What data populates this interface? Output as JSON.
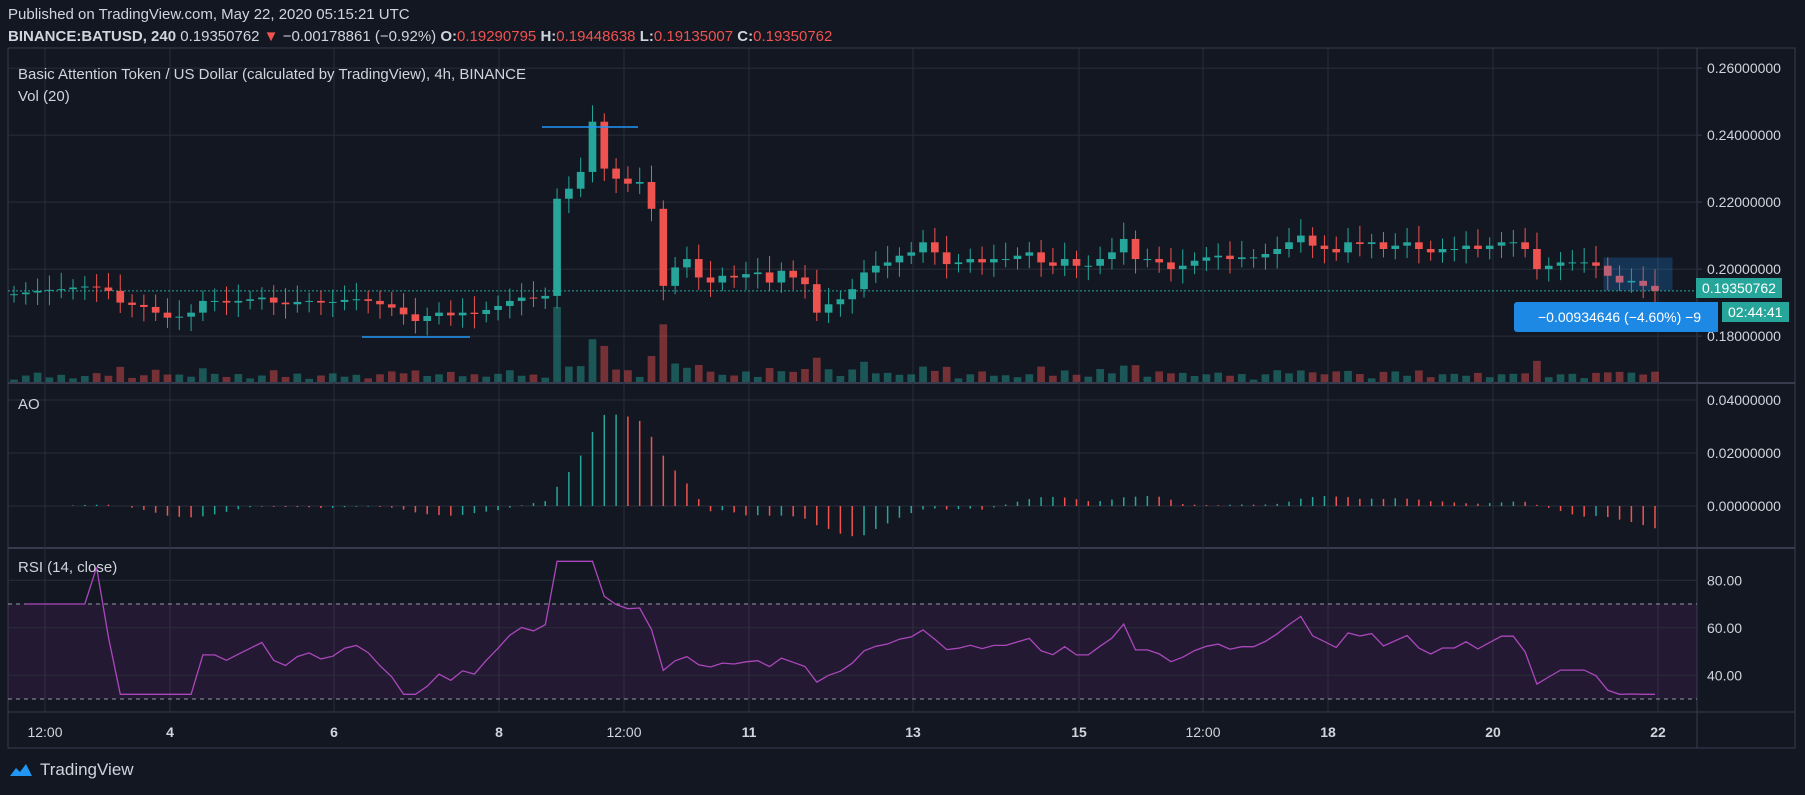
{
  "header": {
    "published": "Published on TradingView.com, May 22, 2020 05:15:21 UTC",
    "symbol": "BINANCE:BATUSD, 240",
    "last": "0.19350762",
    "change_arrow": "▼",
    "change": "−0.00178861 (−0.92%)",
    "o_label": "O:",
    "o": "0.19290795",
    "h_label": "H:",
    "h": "0.19448638",
    "l_label": "L:",
    "l": "0.19135007",
    "c_label": "C:",
    "c": "0.19350762"
  },
  "panes": {
    "main_title": "Basic Attention Token / US Dollar (calculated by TradingView), 4h, BINANCE",
    "vol_label": "Vol (20)",
    "ao_label": "AO",
    "rsi_label": "RSI (14, close)"
  },
  "tags": {
    "price": "0.19350762",
    "countdown": "02:44:41",
    "measure": "−0.00934646 (−4.60%) −9"
  },
  "footer": {
    "brand": "TradingView"
  },
  "colors": {
    "up": "#26a69a",
    "down": "#ef5350",
    "bg": "#131722",
    "rsi": "#9c27b0",
    "measure": "#1e88e5"
  },
  "chart_data": {
    "type": "candlestick",
    "title": "Basic Attention Token / US Dollar (calculated by TradingView), 4h, BINANCE",
    "x_ticks": [
      "12:00",
      "4",
      "6",
      "8",
      "12:00",
      "11",
      "13",
      "15",
      "12:00",
      "18",
      "20",
      "22"
    ],
    "price_axis": {
      "ticks": [
        "0.26000000",
        "0.24000000",
        "0.22000000",
        "0.20000000",
        "0.18000000"
      ],
      "ylim": [
        0.166,
        0.266
      ]
    },
    "last_price": 0.19350762,
    "candles_close": [
      0.1925,
      0.193,
      0.1935,
      0.1938,
      0.194,
      0.1945,
      0.1948,
      0.1945,
      0.1935,
      0.19,
      0.1893,
      0.1887,
      0.187,
      0.1855,
      0.1858,
      0.187,
      0.1905,
      0.1905,
      0.19,
      0.1905,
      0.191,
      0.1915,
      0.19,
      0.1895,
      0.1902,
      0.1905,
      0.19,
      0.1902,
      0.1908,
      0.191,
      0.1905,
      0.1895,
      0.1885,
      0.1865,
      0.1845,
      0.186,
      0.187,
      0.1862,
      0.187,
      0.1866,
      0.1878,
      0.189,
      0.1905,
      0.1915,
      0.1912,
      0.192,
      0.221,
      0.224,
      0.229,
      0.244,
      0.23,
      0.227,
      0.2255,
      0.226,
      0.218,
      0.195,
      0.2005,
      0.203,
      0.1975,
      0.196,
      0.198,
      0.1975,
      0.1985,
      0.199,
      0.196,
      0.1995,
      0.1975,
      0.1955,
      0.187,
      0.1895,
      0.191,
      0.194,
      0.199,
      0.201,
      0.202,
      0.204,
      0.205,
      0.208,
      0.205,
      0.2015,
      0.202,
      0.203,
      0.202,
      0.203,
      0.203,
      0.204,
      0.205,
      0.202,
      0.201,
      0.203,
      0.201,
      0.201,
      0.203,
      0.205,
      0.209,
      0.203,
      0.203,
      0.202,
      0.2,
      0.201,
      0.2025,
      0.2035,
      0.204,
      0.203,
      0.2035,
      0.2035,
      0.2045,
      0.206,
      0.208,
      0.21,
      0.207,
      0.206,
      0.205,
      0.208,
      0.2075,
      0.208,
      0.206,
      0.207,
      0.208,
      0.206,
      0.205,
      0.206,
      0.206,
      0.207,
      0.206,
      0.207,
      0.208,
      0.208,
      0.206,
      0.2,
      0.201,
      0.202,
      0.202,
      0.202,
      0.201,
      0.198,
      0.196,
      0.1965,
      0.195,
      0.1935
    ]
  }
}
